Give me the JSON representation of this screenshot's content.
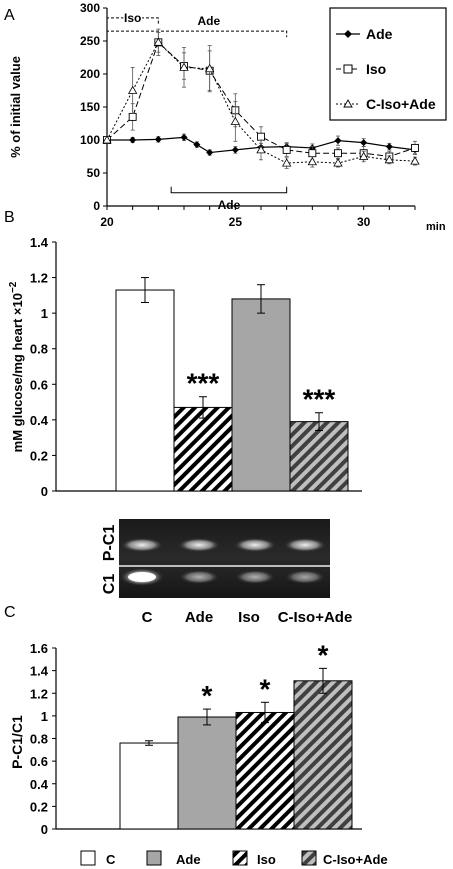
{
  "colors": {
    "white_bar": "#ffffff",
    "grey_bar": "#a6a6a6",
    "dark_bar": "#6e6e6e",
    "axis": "#000000"
  },
  "chart_data": [
    {
      "panel": "A",
      "type": "line",
      "ylabel": "% of initial value",
      "xlabel": "min",
      "xlim": [
        20,
        32
      ],
      "ylim": [
        0,
        300
      ],
      "xticks": [
        20,
        25,
        30
      ],
      "yticks": [
        0,
        50,
        100,
        150,
        200,
        250,
        300
      ],
      "legend_position": "top-right",
      "annotations": [
        {
          "text": "Iso",
          "x_from": 20,
          "x_to": 22,
          "level": 285
        },
        {
          "text": "Ade",
          "x_from": 20,
          "x_to": 27,
          "level": 265
        },
        {
          "text": "Ade",
          "x_from": 22.5,
          "x_to": 27,
          "level": 20
        }
      ],
      "series": [
        {
          "name": "Ade",
          "marker": "diamond",
          "x": [
            20,
            21,
            22,
            23,
            23.5,
            24,
            25,
            26,
            27,
            28,
            29,
            30,
            31,
            32
          ],
          "y": [
            100,
            100,
            101,
            104,
            93,
            81,
            85,
            89,
            90,
            88,
            99,
            96,
            90,
            85
          ],
          "err": [
            4,
            4,
            4,
            5,
            4,
            4,
            5,
            6,
            6,
            6,
            7,
            6,
            5,
            6
          ]
        },
        {
          "name": "Iso",
          "marker": "square",
          "x": [
            20,
            21,
            22,
            23,
            24,
            25,
            26,
            27,
            28,
            29,
            30,
            31,
            32
          ],
          "y": [
            100,
            135,
            248,
            212,
            205,
            145,
            105,
            85,
            80,
            80,
            80,
            75,
            88
          ],
          "err": [
            5,
            20,
            15,
            20,
            30,
            25,
            15,
            10,
            10,
            8,
            10,
            8,
            10
          ]
        },
        {
          "name": "C-Iso+Ade",
          "marker": "triangle",
          "x": [
            20,
            21,
            22,
            23,
            24,
            25,
            26,
            27,
            28,
            29,
            30,
            31,
            32
          ],
          "y": [
            100,
            175,
            248,
            210,
            208,
            128,
            85,
            65,
            67,
            65,
            75,
            70,
            68
          ],
          "err": [
            5,
            35,
            20,
            30,
            35,
            30,
            15,
            8,
            8,
            6,
            8,
            6,
            6
          ]
        }
      ]
    },
    {
      "panel": "B",
      "type": "bar",
      "ylabel": "mM glucose/mg heart ×10",
      "ylabel_exp": "−2",
      "ylim": [
        0,
        1.4
      ],
      "yticks": [
        "0",
        "0.2",
        "0.4",
        "0.6",
        "0.8",
        "1",
        "1.2",
        "1.4"
      ],
      "bars": [
        {
          "value": 1.13,
          "err": 0.07,
          "fill": "white",
          "label": ""
        },
        {
          "value": 0.47,
          "err": 0.06,
          "fill": "white_hatch",
          "label": "***"
        },
        {
          "value": 1.08,
          "err": 0.08,
          "fill": "grey",
          "label": ""
        },
        {
          "value": 0.39,
          "err": 0.05,
          "fill": "grey_hatch",
          "label": "***"
        }
      ]
    },
    {
      "panel": "C",
      "type": "bar",
      "ylabel": "P-C1/C1",
      "ylim": [
        0,
        1.6
      ],
      "yticks": [
        "0",
        "0.2",
        "0.4",
        "0.6",
        "0.8",
        "1",
        "1.2",
        "1.4",
        "1.6"
      ],
      "categories": [
        "C",
        "Ade",
        "Iso",
        "C-Iso+Ade"
      ],
      "bars": [
        {
          "value": 0.76,
          "err": 0.02,
          "fill": "white",
          "label": ""
        },
        {
          "value": 0.99,
          "err": 0.07,
          "fill": "grey",
          "label": "*"
        },
        {
          "value": 1.03,
          "err": 0.09,
          "fill": "white_hatch",
          "label": "*"
        },
        {
          "value": 1.31,
          "err": 0.11,
          "fill": "grey_hatch",
          "label": "*"
        }
      ]
    }
  ],
  "panel_labels": {
    "a": "A",
    "b": "B",
    "c": "C"
  },
  "blot": {
    "top_label": "P-C1",
    "bottom_label": "C1"
  },
  "bottom_legend": [
    {
      "label": "C",
      "fill": "white"
    },
    {
      "label": "Ade",
      "fill": "grey"
    },
    {
      "label": "Iso",
      "fill": "white_hatch"
    },
    {
      "label": "C-Iso+Ade",
      "fill": "grey_hatch"
    }
  ]
}
